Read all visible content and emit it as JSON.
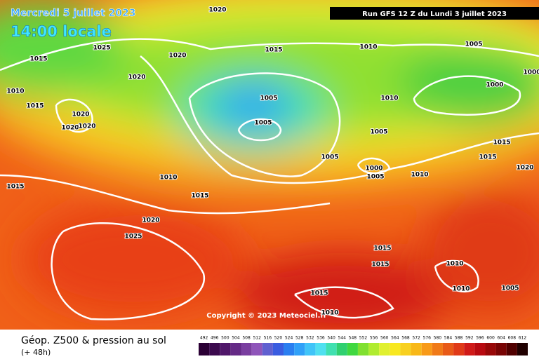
{
  "header": {
    "date": "Mercredi 5 juillet 2023",
    "time": "14:00 locale",
    "run": "Run GFS 12 Z du Lundi 3 juillet 2023"
  },
  "map": {
    "isobar_labels": [
      1020,
      1025,
      1015,
      1020,
      1010,
      1015,
      1020,
      1020,
      1020,
      1020,
      1015,
      1010,
      1005,
      1000,
      1000,
      1005,
      1005,
      1010,
      1005,
      1005,
      1015,
      1015,
      1020,
      1000,
      1005,
      1010,
      1015,
      1010,
      1015,
      1020,
      1025,
      1015,
      1015,
      1010,
      1010,
      1005,
      1015,
      1010
    ],
    "copyright": "Copyright © 2023 Meteociel.fr"
  },
  "footer": {
    "title": "Géop. Z500 & pression au sol",
    "subtitle": "(+ 48h)",
    "scale": {
      "values": [
        492,
        496,
        500,
        504,
        508,
        512,
        516,
        520,
        524,
        528,
        532,
        536,
        540,
        544,
        548,
        552,
        556,
        560,
        564,
        568,
        572,
        576,
        580,
        584,
        588,
        592,
        596,
        600,
        604,
        608,
        612
      ],
      "colors": [
        "#2b0035",
        "#3c0a4e",
        "#50176a",
        "#652a86",
        "#7a3ea0",
        "#8f55ba",
        "#6060d0",
        "#3a5ce0",
        "#2a7ef0",
        "#30a0f8",
        "#40c4f8",
        "#50e0f0",
        "#40e0b0",
        "#30d070",
        "#40d840",
        "#80e030",
        "#b0ec30",
        "#e0f030",
        "#f8e820",
        "#f8d020",
        "#f8b818",
        "#f89a18",
        "#f07a18",
        "#e85a18",
        "#e03a18",
        "#d01a18",
        "#b80a10",
        "#980808",
        "#780404",
        "#500000",
        "#200000"
      ]
    }
  }
}
